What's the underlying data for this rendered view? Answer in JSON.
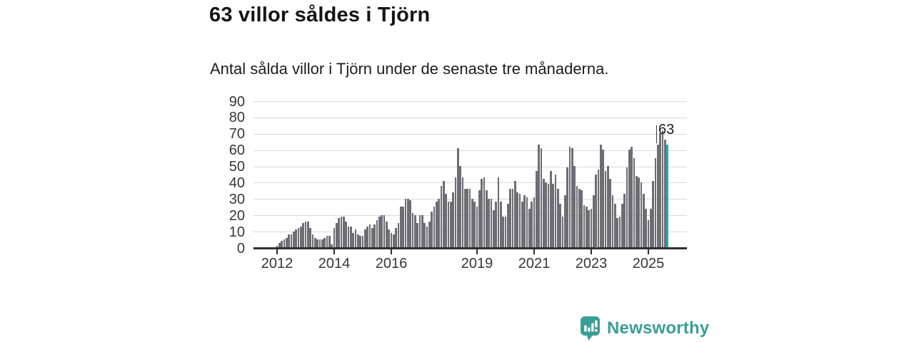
{
  "header": {
    "title": "63 villor såldes i Tjörn",
    "subtitle": "Antal sålda villor i Tjörn under de senaste tre månaderna."
  },
  "chart_data": {
    "type": "bar",
    "title": "63 villor såldes i Tjörn",
    "subtitle": "Antal sålda villor i Tjörn under de senaste tre månaderna.",
    "start_year": 2012,
    "start_month": 1,
    "frequency": "monthly",
    "values": [
      1,
      3,
      4,
      5,
      6,
      8,
      8,
      10,
      11,
      12,
      13,
      15,
      16,
      16,
      12,
      8,
      6,
      5,
      5,
      5,
      6,
      7,
      7,
      2,
      12,
      15,
      18,
      19,
      19,
      16,
      13,
      13,
      9,
      11,
      8,
      7,
      7,
      11,
      13,
      14,
      12,
      14,
      17,
      19,
      20,
      20,
      16,
      11,
      9,
      8,
      12,
      15,
      25,
      25,
      30,
      30,
      29,
      21,
      20,
      15,
      20,
      20,
      15,
      13,
      16,
      22,
      25,
      28,
      30,
      38,
      41,
      33,
      28,
      28,
      34,
      43,
      61,
      50,
      43,
      36,
      36,
      36,
      30,
      28,
      25,
      35,
      42,
      43,
      35,
      30,
      30,
      23,
      28,
      43,
      28,
      19,
      19,
      27,
      36,
      36,
      41,
      34,
      33,
      28,
      32,
      31,
      24,
      28,
      31,
      47,
      63,
      61,
      42,
      40,
      39,
      47,
      39,
      45,
      36,
      27,
      19,
      32,
      49,
      62,
      61,
      50,
      38,
      36,
      35,
      26,
      25,
      23,
      24,
      32,
      45,
      48,
      63,
      60,
      47,
      50,
      42,
      32,
      27,
      18,
      19,
      27,
      33,
      49,
      60,
      62,
      55,
      44,
      43,
      40,
      33,
      24,
      17,
      24,
      41,
      55,
      63,
      70,
      72,
      66,
      63
    ],
    "highlight_last": true,
    "annotation": {
      "label": "63",
      "value": 63
    },
    "y_ticks": [
      0,
      10,
      20,
      30,
      40,
      50,
      60,
      70,
      80,
      90
    ],
    "ylim": [
      0,
      90
    ],
    "x_tick_years": [
      2012,
      2014,
      2016,
      2019,
      2021,
      2023,
      2025
    ],
    "x_tick_labels": [
      "2012",
      "2014",
      "2016",
      "2019",
      "2021",
      "2023",
      "2025"
    ],
    "grid": true,
    "legend": "none",
    "colors": {
      "bar": "#6d6d75",
      "highlight": "#1ab1a3",
      "grid": "#d9d9de",
      "axis": "#2f2f33",
      "text": "#36363c"
    }
  },
  "footer": {
    "brand": "Newsworthy",
    "brand_color": "#3a9e96",
    "logo_icon": "newsworthy-chart-bubble-icon"
  }
}
